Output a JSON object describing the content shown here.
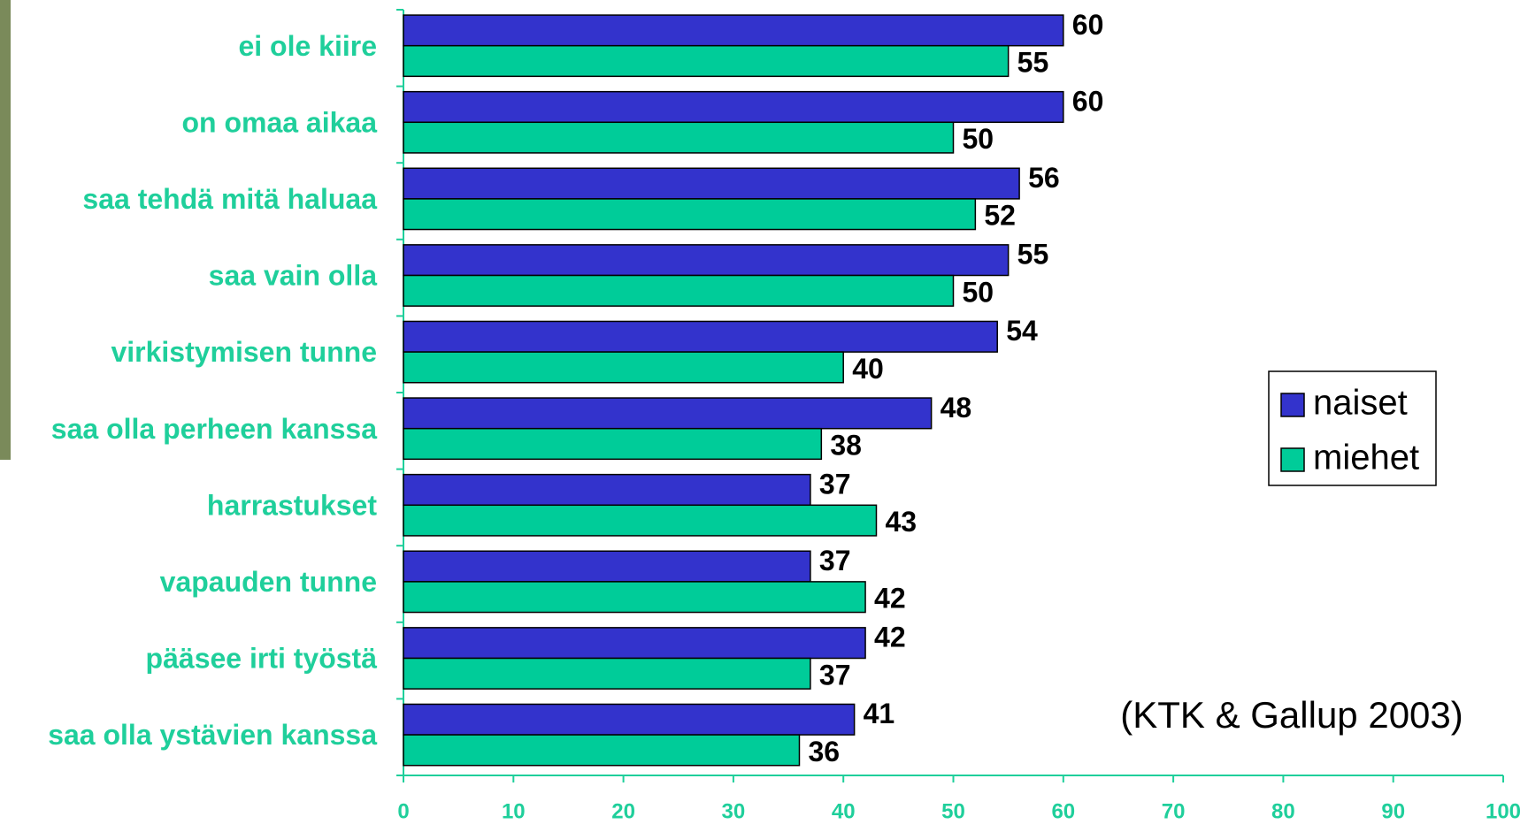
{
  "chart_data": {
    "type": "hbar",
    "categories": [
      "ei ole kiire",
      "on omaa aikaa",
      "saa tehdä mitä haluaa",
      "saa vain olla",
      "virkistymisen tunne",
      "saa olla perheen kanssa",
      "harrastukset",
      "vapauden tunne",
      "pääsee irti työstä",
      "saa olla ystävien kanssa"
    ],
    "series": [
      {
        "name": "naiset",
        "color": "#3333cc",
        "values": [
          60,
          60,
          56,
          55,
          54,
          48,
          37,
          37,
          42,
          41
        ]
      },
      {
        "name": "miehet",
        "color": "#00cc99",
        "values": [
          55,
          50,
          52,
          50,
          40,
          38,
          43,
          42,
          37,
          36
        ]
      }
    ],
    "xlim": [
      0,
      100
    ],
    "xticks": [
      0,
      10,
      20,
      30,
      40,
      50,
      60,
      70,
      80,
      90,
      100
    ],
    "grid": false,
    "legend": "right",
    "annotation": "(KTK & Gallup 2003)"
  }
}
